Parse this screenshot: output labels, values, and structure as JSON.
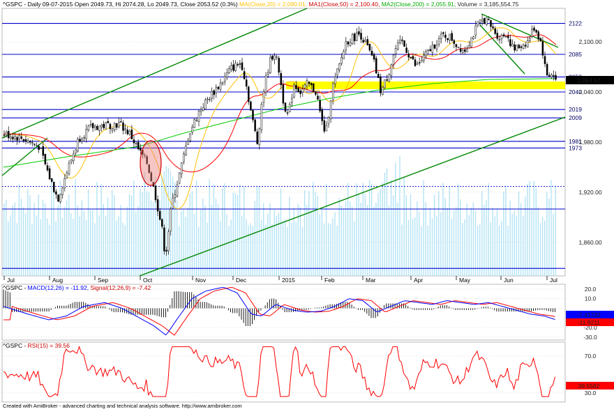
{
  "price_header": {
    "symbol": "^GSPC",
    "summary": " - Daily 09-07-2015 Open 2049.73, Hi 2074.28, Lo 2049.73, Close 2053.52 (0.3%)",
    "ma20": "MA(Close,20) = 2,090.01,",
    "ma50": "MA1(Close,50) = 2,100.40,",
    "ma200": "MA2(Close,200) = 2,055.91,",
    "volume": "Volume = 3,185,554.75"
  },
  "macd_header": {
    "symbol": "^GSPC",
    "dash": " - ",
    "macd": "MACD(12,26) = -11.92,",
    "signal": "Signal(12,26,9) = -7.42"
  },
  "rsi_header": {
    "symbol": "^GSPC",
    "dash": " - ",
    "rsi": "RSI(15) = 39.56"
  },
  "footer": "Created with AmiBroker - advanced charting and technical analysis software. http://www.amibroker.com",
  "price_axis": [
    "2,100.00",
    "2,040.00",
    "1,980.00",
    "1,920.00",
    "1,860.00"
  ],
  "price_tag": "2,053.52",
  "levels": [
    "2122",
    "2085",
    "2058",
    "2040",
    "2019",
    "2009",
    "1981",
    "1973"
  ],
  "months": [
    "Jul",
    "Aug",
    "Sep",
    "Oct",
    "Nov",
    "Dec",
    "2015",
    "Feb",
    "Mar",
    "Apr",
    "May",
    "Jun",
    "Jul"
  ],
  "macd_axis": [
    "20.0",
    "10.0",
    "-20.0",
    "-30.0"
  ],
  "macd_tags": [
    "-7.41732",
    "-11.9211"
  ],
  "rsi_axis": [
    "70.0",
    "30.0"
  ],
  "rsi_tag": "39.5582",
  "colors": {
    "candle_body": "#000000",
    "volume": "#b3e3f5",
    "ma20": "#ffc000",
    "ma50": "#ff0000",
    "ma200": "#00cc00",
    "level_line": "#0000cc",
    "trend_line": "#008800",
    "highlight": "#ffff00",
    "macd_line": "#0000ff",
    "signal_line": "#ff0000",
    "rsi_line": "#ff0000"
  },
  "chart_data": [
    {
      "type": "candlestick",
      "title": "^GSPC Daily",
      "ylim": [
        1820,
        2140
      ],
      "levels": [
        2122,
        2085,
        2058,
        2040,
        2019,
        2009,
        1981,
        1973,
        1927,
        1900,
        1829
      ],
      "highlight_zone": [
        2040,
        2047
      ],
      "last_close": 2053.52,
      "series": [
        {
          "name": "MA(Close,20)",
          "last": 2090.01
        },
        {
          "name": "MA1(Close,50)",
          "last": 2100.4
        },
        {
          "name": "MA2(Close,200)",
          "last": 2055.91
        },
        {
          "name": "Volume",
          "last": 3185554.75
        }
      ]
    },
    {
      "type": "line",
      "title": "MACD",
      "ylim": [
        -33,
        25
      ],
      "series": [
        {
          "name": "MACD(12,26)",
          "last": -11.92
        },
        {
          "name": "Signal(12,26,9)",
          "last": -7.42
        }
      ]
    },
    {
      "type": "line",
      "title": "RSI",
      "ylim": [
        20,
        85
      ],
      "series": [
        {
          "name": "RSI(15)",
          "last": 39.56
        }
      ]
    }
  ]
}
